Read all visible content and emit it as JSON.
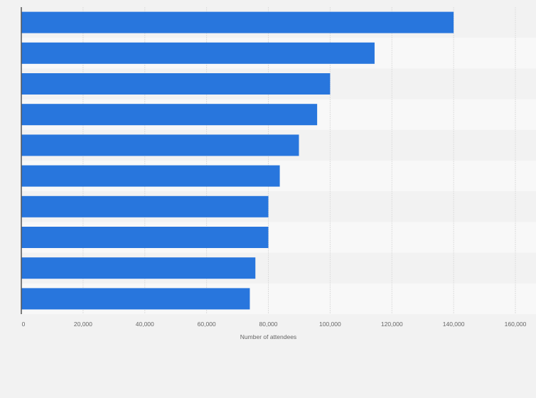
{
  "chart_data": {
    "type": "bar",
    "orientation": "horizontal",
    "title": "",
    "xlabel": "Number of attendees",
    "ylabel": "",
    "categories": [
      "",
      "",
      "",
      "",
      "",
      "",
      "",
      "",
      "",
      ""
    ],
    "values": [
      140000,
      114400,
      100000,
      95800,
      89900,
      83700,
      80000,
      80000,
      75800,
      74000
    ],
    "xlim": [
      0,
      160000
    ],
    "xticks": [
      0,
      20000,
      40000,
      60000,
      80000,
      100000,
      120000,
      140000,
      160000
    ],
    "xtick_labels": [
      "0",
      "20,000",
      "40,000",
      "60,000",
      "80,000",
      "100,000",
      "120,000",
      "140,000",
      "160,000"
    ],
    "grid": true,
    "legend": "none",
    "colors": {
      "bar": "#2876dd",
      "band_dark": "#f2f2f2",
      "band_light": "#f8f8f8",
      "grid": "#dddddd",
      "axis": "#555555"
    }
  }
}
